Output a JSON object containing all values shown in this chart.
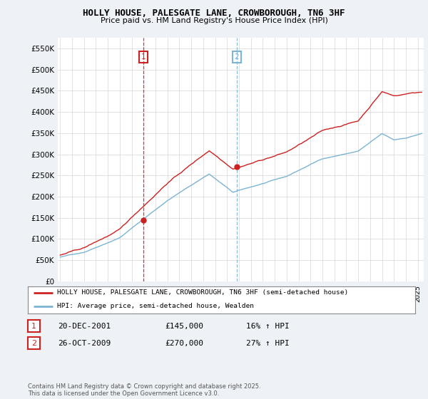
{
  "title": "HOLLY HOUSE, PALESGATE LANE, CROWBOROUGH, TN6 3HF",
  "subtitle": "Price paid vs. HM Land Registry's House Price Index (HPI)",
  "ylabel_ticks": [
    "£0",
    "£50K",
    "£100K",
    "£150K",
    "£200K",
    "£250K",
    "£300K",
    "£350K",
    "£400K",
    "£450K",
    "£500K",
    "£550K"
  ],
  "ytick_values": [
    0,
    50000,
    100000,
    150000,
    200000,
    250000,
    300000,
    350000,
    400000,
    450000,
    500000,
    550000
  ],
  "ylim": [
    0,
    575000
  ],
  "xlim_start": 1994.8,
  "xlim_end": 2025.5,
  "hpi_color": "#7cb4d4",
  "price_color": "#cc2222",
  "marker1_date": 2001.97,
  "marker1_price": 145000,
  "marker1_label": "1",
  "marker2_date": 2009.82,
  "marker2_price": 270000,
  "marker2_label": "2",
  "legend_line1": "HOLLY HOUSE, PALESGATE LANE, CROWBOROUGH, TN6 3HF (semi-detached house)",
  "legend_line2": "HPI: Average price, semi-detached house, Wealden",
  "table_row1": [
    "1",
    "20-DEC-2001",
    "£145,000",
    "16% ↑ HPI"
  ],
  "table_row2": [
    "2",
    "26-OCT-2009",
    "£270,000",
    "27% ↑ HPI"
  ],
  "footer": "Contains HM Land Registry data © Crown copyright and database right 2025.\nThis data is licensed under the Open Government Licence v3.0.",
  "background_color": "#eef2f7",
  "plot_bg_color": "#ffffff"
}
